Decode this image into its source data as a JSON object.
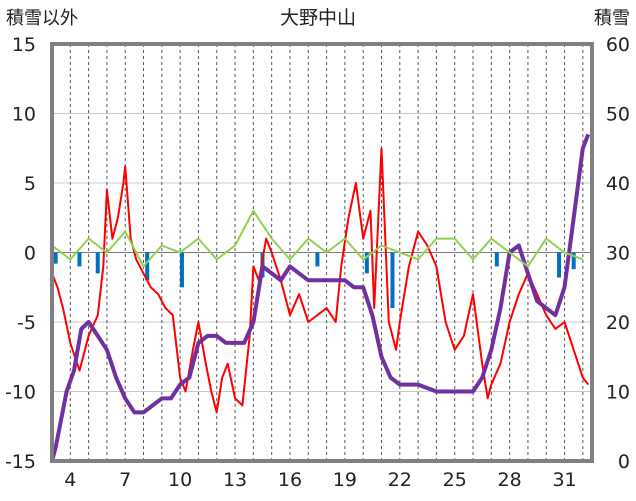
{
  "chart_data": {
    "type": "line",
    "title": "大野中山",
    "y_left_label": "積雪以外",
    "y_right_label": "積雪",
    "y_left_range": [
      -15,
      15
    ],
    "y_left_ticks": [
      "15",
      "10",
      "5",
      "0",
      "-5",
      "-10",
      "-15"
    ],
    "y_right_range": [
      0,
      60
    ],
    "y_right_ticks": [
      "60",
      "50",
      "40",
      "30",
      "20",
      "10",
      "0"
    ],
    "x_range": [
      3,
      32.5
    ],
    "x_ticks": [
      "4",
      "7",
      "10",
      "13",
      "16",
      "19",
      "22",
      "25",
      "28",
      "31"
    ],
    "grid": {
      "vertical_dashed": true,
      "horizontal": true
    },
    "colors": {
      "red": "#ff0000",
      "purple": "#7030a0",
      "green": "#92d050",
      "blue": "#0070c0",
      "frame": "#808080"
    },
    "series": [
      {
        "axis": "left",
        "color": "#ff0000",
        "x": [
          3,
          3.3,
          3.6,
          4,
          4.5,
          5,
          5.5,
          5.8,
          6,
          6.3,
          6.6,
          6.9,
          7,
          7.3,
          7.6,
          8,
          8.4,
          8.8,
          9.2,
          9.6,
          10,
          10.3,
          10.7,
          11,
          11.4,
          11.7,
          12,
          12.3,
          12.6,
          13,
          13.4,
          13.8,
          14,
          14.3,
          14.7,
          15,
          15.5,
          16,
          16.5,
          17,
          17.5,
          18,
          18.5,
          18.8,
          19.2,
          19.6,
          20,
          20.4,
          20.6,
          21,
          21.4,
          21.8,
          22,
          22.5,
          23,
          23.5,
          24,
          24.5,
          25,
          25.5,
          26,
          26.5,
          26.8,
          27,
          27.5,
          28,
          28.5,
          29,
          29.5,
          30,
          30.5,
          31,
          31.5,
          32,
          32.3
        ],
        "values": [
          -1.5,
          -2.5,
          -4,
          -6.5,
          -8.5,
          -6,
          -4.5,
          -1,
          4.5,
          1,
          2.5,
          5,
          6.2,
          1,
          -0.5,
          -1.5,
          -2.5,
          -3,
          -4,
          -4.5,
          -9,
          -10,
          -7,
          -5,
          -8,
          -10,
          -11.5,
          -9,
          -8,
          -10.5,
          -11,
          -6,
          -1,
          -2,
          1,
          0,
          -2,
          -4.5,
          -3,
          -5,
          -4.5,
          -4,
          -5,
          -1,
          2.5,
          5,
          1,
          3,
          -4,
          7.5,
          -5,
          -7,
          -5,
          -1,
          1.5,
          0.5,
          -1,
          -5,
          -7,
          -6,
          -3,
          -8,
          -10.5,
          -9.5,
          -8,
          -5,
          -3,
          -1.5,
          -3,
          -4.5,
          -5.5,
          -5,
          -7,
          -9,
          -9.5
        ]
      },
      {
        "axis": "right",
        "color": "#7030a0",
        "x": [
          3,
          3.2,
          3.5,
          3.8,
          4.2,
          4.6,
          5,
          5.5,
          6,
          6.5,
          7,
          7.5,
          8,
          8.5,
          9,
          9.5,
          10,
          10.5,
          11,
          11.5,
          12,
          12.5,
          13,
          13.5,
          14,
          14.5,
          15,
          15.5,
          16,
          16.5,
          17,
          17.5,
          18,
          18.5,
          19,
          19.5,
          20,
          20.5,
          21,
          21.5,
          22,
          23,
          24,
          25,
          26,
          26.5,
          27,
          27.5,
          28,
          28.5,
          29,
          29.5,
          30,
          30.5,
          31,
          31.5,
          32,
          32.3
        ],
        "values": [
          0,
          2,
          6,
          10,
          13,
          19,
          20,
          18,
          16,
          12,
          9,
          7,
          7,
          8,
          9,
          9,
          11,
          12,
          17,
          18,
          18,
          17,
          17,
          17,
          20,
          28,
          27,
          26,
          28,
          27,
          26,
          26,
          26,
          26,
          26,
          25,
          25,
          21,
          15,
          12,
          11,
          11,
          10,
          10,
          10,
          12,
          16,
          22,
          30,
          31,
          27,
          23,
          22,
          21,
          25,
          35,
          45,
          47
        ]
      },
      {
        "axis": "left",
        "color": "#92d050",
        "x": [
          3,
          4,
          5,
          6,
          7,
          8,
          9,
          10,
          11,
          12,
          13,
          14,
          15,
          16,
          17,
          18,
          19,
          20,
          21,
          22,
          23,
          24,
          25,
          26,
          27,
          28,
          29,
          30,
          31,
          32
        ],
        "values": [
          0.5,
          -0.5,
          1,
          0,
          1.5,
          -1,
          0.5,
          0,
          1,
          -0.5,
          0.5,
          3,
          1,
          -0.5,
          1,
          0,
          1,
          -0.5,
          0.5,
          0,
          -0.5,
          1,
          1,
          -0.5,
          1,
          0,
          -1,
          1,
          0,
          -0.5
        ]
      },
      {
        "axis": "left",
        "color": "#0070c0",
        "x": [
          3.2,
          4.5,
          5.5,
          8.2,
          10.1,
          14.5,
          17.5,
          20.2,
          21.6,
          27.3,
          30.7,
          31.5
        ],
        "values": [
          -0.8,
          -1,
          -1.5,
          -2,
          -2.5,
          -1.8,
          -1,
          -1.5,
          -4,
          -1,
          -1.8,
          -1.2
        ]
      }
    ]
  }
}
